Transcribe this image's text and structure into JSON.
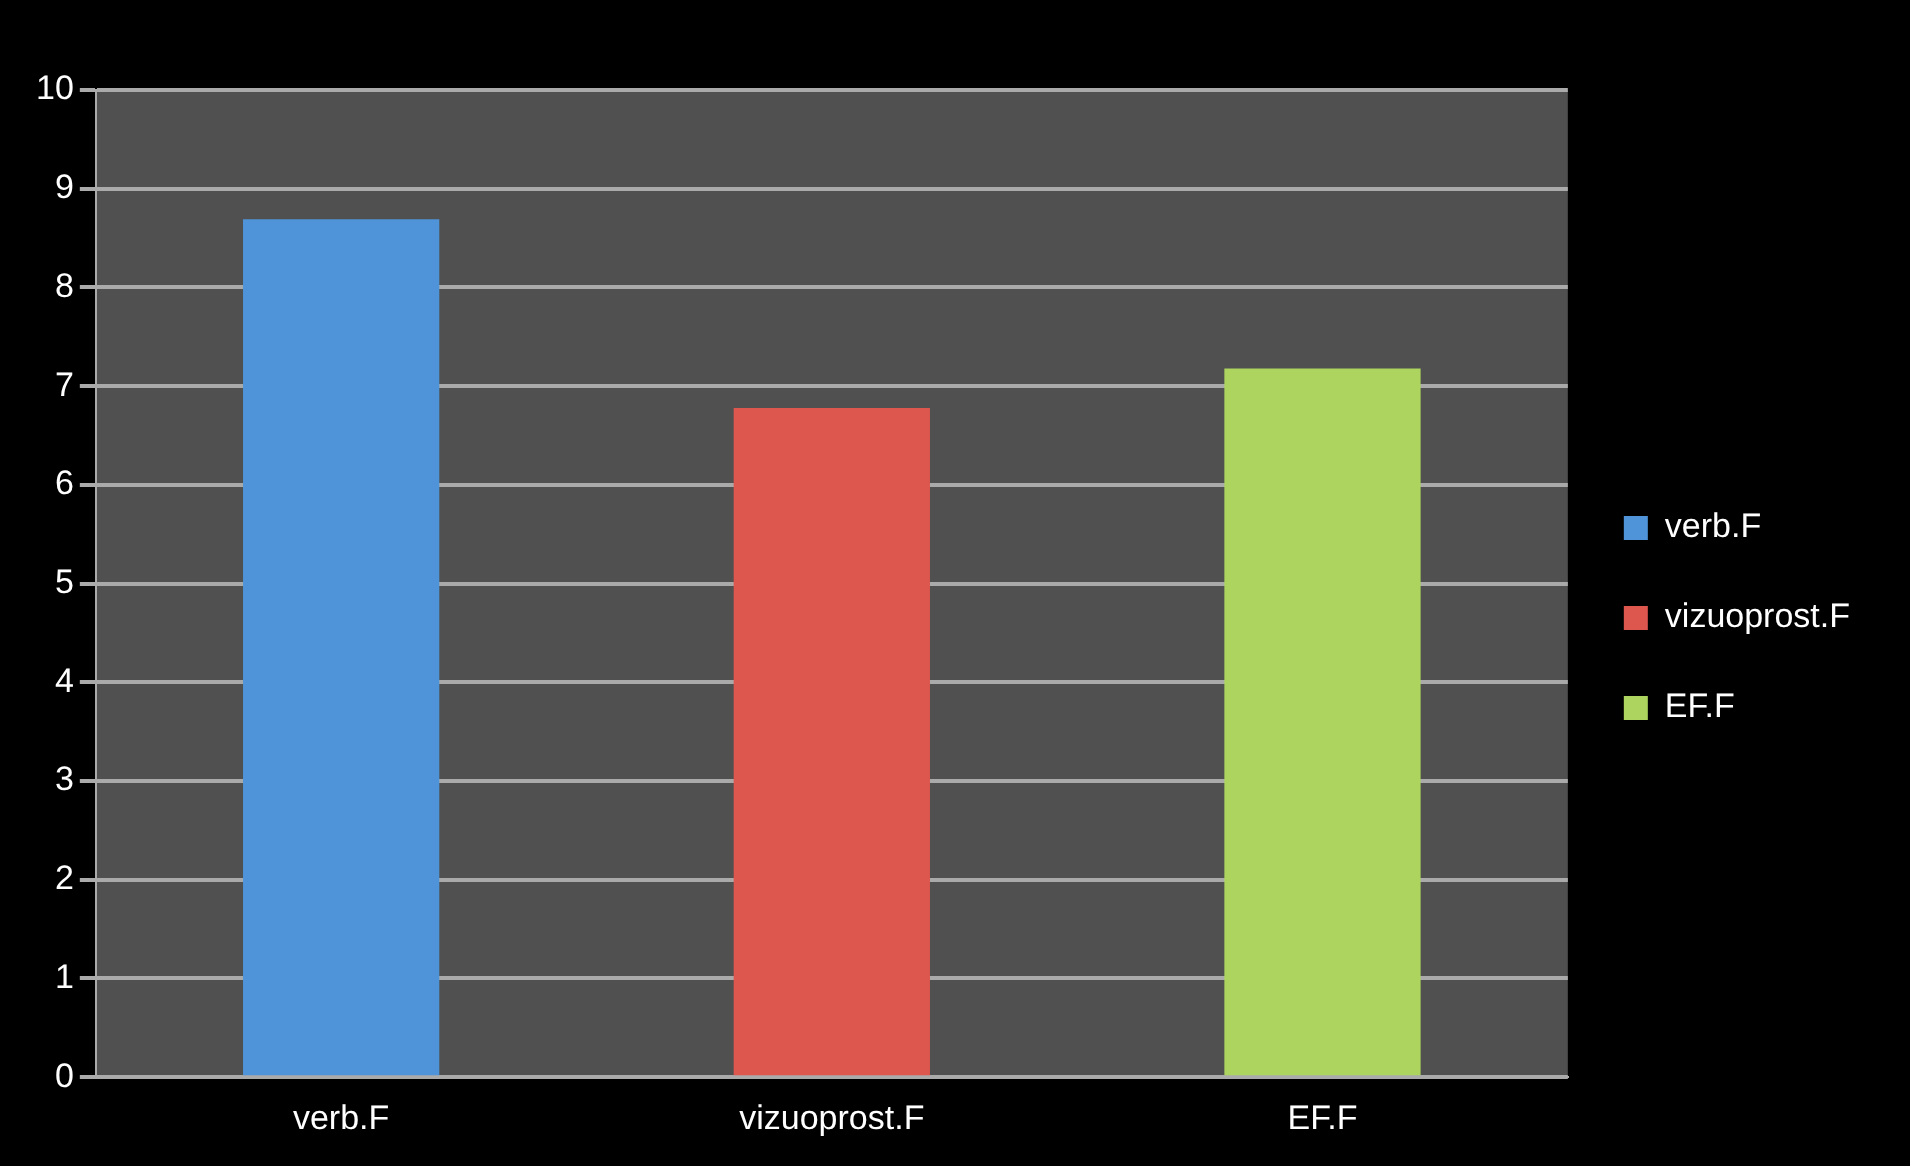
{
  "chart_data": {
    "type": "bar",
    "categories": [
      "verb.F",
      "vizuoprost.F",
      "EF.F"
    ],
    "series": [
      {
        "name": "verb.F",
        "color": "#4f94d8",
        "values": [
          8.69,
          null,
          null
        ]
      },
      {
        "name": "vizuoprost.F",
        "color": "#dd574e",
        "values": [
          null,
          6.78,
          null
        ]
      },
      {
        "name": "EF.F",
        "color": "#acd45e",
        "values": [
          null,
          null,
          7.18
        ]
      }
    ],
    "ylim": [
      0,
      10
    ],
    "yticks": [
      0,
      1,
      2,
      3,
      4,
      5,
      6,
      7,
      8,
      9,
      10
    ],
    "grid": "y",
    "legend": "right"
  }
}
